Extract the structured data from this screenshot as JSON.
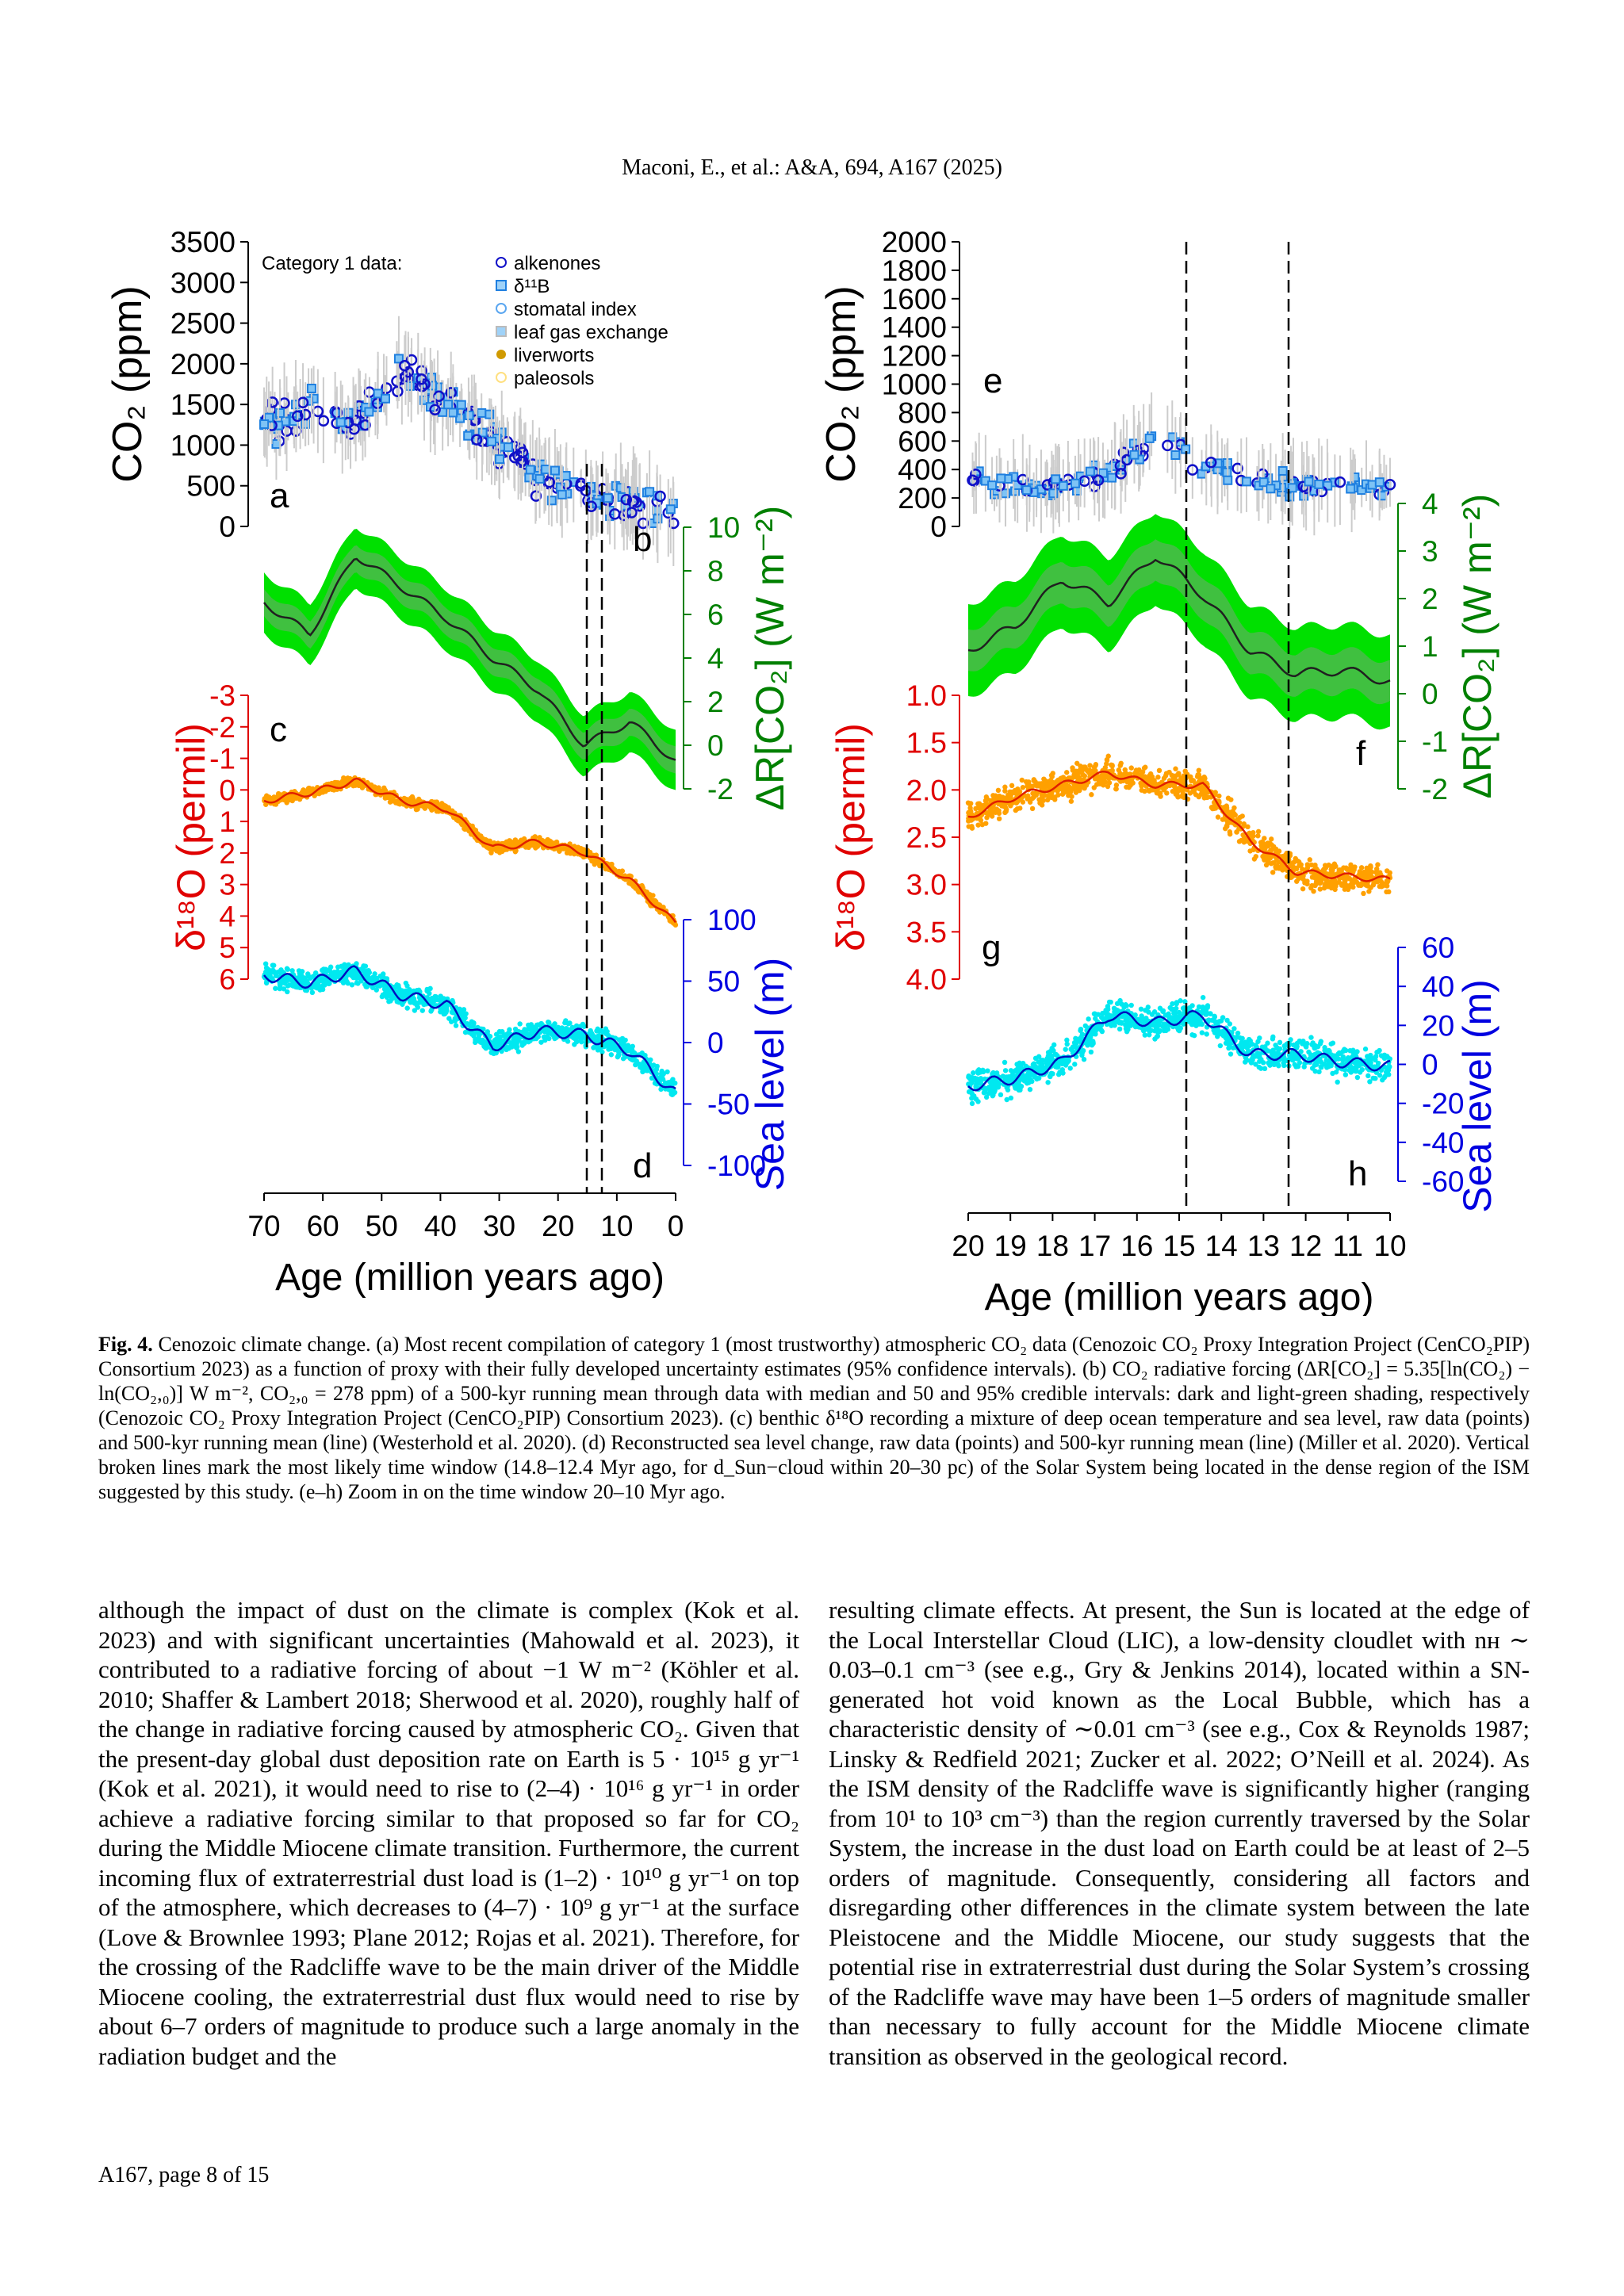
{
  "header": {
    "running_title": "Maconi, E., et al.: A&A, 694, A167 (2025)"
  },
  "figure": {
    "left": {
      "x_axis": {
        "title": "Age (million years ago)",
        "ticks": [
          "70",
          "60",
          "50",
          "40",
          "30",
          "20",
          "10",
          "0"
        ]
      },
      "co2_axis": {
        "title": "CO₂ (ppm)",
        "ticks": [
          "3500",
          "3000",
          "2500",
          "2000",
          "1500",
          "1000",
          "500",
          "0"
        ]
      },
      "forcing_axis": {
        "title": "ΔR[CO₂] (W m⁻²)",
        "ticks": [
          "10",
          "8",
          "6",
          "4",
          "2",
          "0",
          "-2"
        ]
      },
      "d18o_axis": {
        "title": "δ¹⁸O (permil)",
        "ticks": [
          "-3",
          "-2",
          "-1",
          "0",
          "1",
          "2",
          "3",
          "4",
          "5",
          "6"
        ]
      },
      "sea_axis": {
        "title": "Sea level (m)",
        "ticks": [
          "100",
          "50",
          "0",
          "-50",
          "-100"
        ]
      },
      "panel_letters": [
        "a",
        "b",
        "c",
        "d"
      ],
      "legend": {
        "title": "Category 1 data:",
        "items": [
          "alkenones",
          "δ¹¹B",
          "stomatal index",
          "leaf gas exchange",
          "liverworts",
          "paleosols"
        ]
      }
    },
    "right": {
      "x_axis": {
        "title": "Age (million years ago)",
        "ticks": [
          "20",
          "19",
          "18",
          "17",
          "16",
          "15",
          "14",
          "13",
          "12",
          "11",
          "10"
        ]
      },
      "co2_axis": {
        "title": "CO₂ (ppm)",
        "ticks": [
          "2000",
          "1800",
          "1600",
          "1400",
          "1200",
          "1000",
          "800",
          "600",
          "400",
          "200",
          "0"
        ]
      },
      "forcing_axis": {
        "title": "ΔR[CO₂] (W m⁻²)",
        "ticks": [
          "4",
          "3",
          "2",
          "1",
          "0",
          "-1",
          "-2"
        ]
      },
      "d18o_axis": {
        "title": "δ¹⁸O (permil)",
        "ticks": [
          "1.0",
          "1.5",
          "2.0",
          "2.5",
          "3.0",
          "3.5",
          "4.0"
        ]
      },
      "sea_axis": {
        "title": "Sea level (m)",
        "ticks": [
          "60",
          "40",
          "20",
          "0",
          "-20",
          "-40",
          "-60"
        ]
      },
      "panel_letters": [
        "e",
        "f",
        "g",
        "h"
      ]
    },
    "colors": {
      "co2_points": "#1e7fe0",
      "alkenones": "#1010c8",
      "forcing_band": "#00e000",
      "forcing_inner": "#40c040",
      "d18o_points": "#ffa000",
      "d18o_line": "#e02000",
      "sea_points": "#00e8f0",
      "sea_line": "#0010c0",
      "axis_green": "#008000",
      "axis_red": "#e00000",
      "axis_blue": "#0000e0"
    }
  },
  "caption": {
    "label": "Fig. 4.",
    "text": "Cenozoic climate change. (a) Most recent compilation of category 1 (most trustworthy) atmospheric CO₂ data (Cenozoic CO₂ Proxy Integration Project (CenCO₂PIP) Consortium 2023) as a function of proxy with their fully developed uncertainty estimates (95% confidence intervals). (b) CO₂ radiative forcing (ΔR[CO₂] = 5.35[ln(CO₂) − ln(CO₂,₀)] W m⁻², CO₂,₀ = 278 ppm) of a 500-kyr running mean through data with median and 50 and 95% credible intervals: dark and light-green shading, respectively (Cenozoic CO₂ Proxy Integration Project (CenCO₂PIP) Consortium 2023). (c) benthic δ¹⁸O recording a mixture of deep ocean temperature and sea level, raw data (points) and 500-kyr running mean (line) (Westerhold et al. 2020). (d) Reconstructed sea level change, raw data (points) and 500-kyr running mean (line) (Miller et al. 2020). Vertical broken lines mark the most likely time window (14.8–12.4 Myr ago, for d_Sun−cloud within 20–30 pc) of the Solar System being located in the dense region of the ISM suggested by this study. (e–h) Zoom in on the time window 20–10 Myr ago."
  },
  "body": {
    "left_column": "although the impact of dust on the climate is complex (Kok et al. 2023) and with significant uncertainties (Mahowald et al. 2023), it contributed to a radiative forcing of about −1 W m⁻² (Köhler et al. 2010; Shaffer & Lambert 2018; Sherwood et al. 2020), roughly half of the change in radiative forcing caused by atmospheric CO₂. Given that the present-day global dust deposition rate on Earth is 5 · 10¹⁵ g yr⁻¹ (Kok et al. 2021), it would need to rise to (2–4) · 10¹⁶ g yr⁻¹ in order achieve a radiative forcing similar to that proposed so far for CO₂ during the Middle Miocene climate transition. Furthermore, the current incoming flux of extraterrestrial dust load is (1–2) · 10¹⁰ g yr⁻¹ on top of the atmosphere, which decreases to (4–7) · 10⁹ g yr⁻¹ at the surface (Love & Brownlee 1993; Plane 2012; Rojas et al. 2021). Therefore, for the crossing of the Radcliffe wave to be the main driver of the Middle Miocene cooling, the extraterrestrial dust flux would need to rise by about 6–7 orders of magnitude to produce such a large anomaly in the radiation budget and the",
    "right_column": "resulting climate effects. At present, the Sun is located at the edge of the Local Interstellar Cloud (LIC), a low-density cloudlet with nʜ ∼ 0.03–0.1 cm⁻³ (see e.g., Gry & Jenkins 2014), located within a SN-generated hot void known as the Local Bubble, which has a characteristic density of ∼0.01 cm⁻³ (see e.g., Cox & Reynolds 1987; Linsky & Redfield 2021; Zucker et al. 2022; O’Neill et al. 2024). As the ISM density of the Radcliffe wave is significantly higher (ranging from 10¹ to 10³ cm⁻³) than the region currently traversed by the Solar System, the increase in the dust load on Earth could be at least of 2–5 orders of magnitude. Consequently, considering all factors and disregarding other differences in the climate system between the late Pleistocene and the Middle Miocene, our study suggests that the potential rise in extraterrestrial dust during the Solar System’s crossing of the Radcliffe wave may have been 1–5 orders of magnitude smaller than necessary to fully account for the Middle Miocene climate transition as observed in the geological record."
  },
  "footer": {
    "page": "A167, page 8 of 15"
  }
}
